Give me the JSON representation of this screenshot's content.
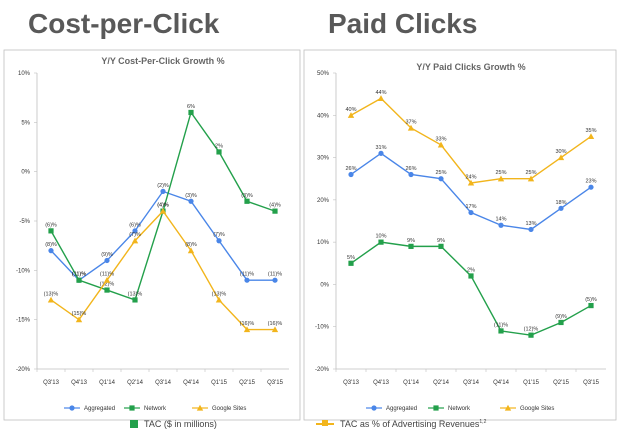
{
  "page": {
    "left_title": "Cost-per-Click",
    "right_title": "Paid Clicks",
    "footer_tac": "TAC ($ in millions)",
    "footer_tac_pct": "TAC as % of Advertising Revenues",
    "footer_tac_pct_sup": "1,2"
  },
  "colors": {
    "aggregated": "#4a86e8",
    "network": "#23a04b",
    "google_sites": "#f2b51c",
    "grid": "#d9d9d9",
    "axis_text": "#333333"
  },
  "chart_data": [
    {
      "type": "line",
      "title": "Y/Y Cost-Per-Click Growth %",
      "categories": [
        "Q3'13",
        "Q4'13",
        "Q1'14",
        "Q2'14",
        "Q3'14",
        "Q4'14",
        "Q1'15",
        "Q2'15",
        "Q3'15"
      ],
      "ylim": [
        -20,
        10
      ],
      "yticks": [
        10,
        5,
        0,
        -5,
        -10,
        -15,
        -20
      ],
      "ytick_labels": [
        "10%",
        "5%",
        "0%",
        "-5%",
        "-10%",
        "-15%",
        "-20%"
      ],
      "grid": false,
      "legend": "bottom",
      "series": [
        {
          "name": "Aggregated",
          "color_key": "aggregated",
          "marker": "circle",
          "values": [
            -8,
            -11,
            -9,
            -6,
            -2,
            -3,
            -7,
            -11,
            -11
          ],
          "labels": [
            "(8)%",
            "(11)%",
            "(9)%",
            "(6)%",
            "(2)%",
            "(3)%",
            "(7)%",
            "(11)%",
            "(11)%"
          ]
        },
        {
          "name": "Network",
          "color_key": "network",
          "marker": "square",
          "values": [
            -6,
            -11,
            -12,
            -13,
            -4,
            6,
            2,
            -3,
            -4
          ],
          "labels": [
            "(6)%",
            "(11)%",
            "(12)%",
            "(13)%",
            "(4)%",
            "6%",
            "2%",
            "(3)%",
            "(4)%"
          ]
        },
        {
          "name": "Google Sites",
          "color_key": "google_sites",
          "marker": "triangle",
          "values": [
            -13,
            -15,
            -11,
            -7,
            -4,
            -8,
            -13,
            -16,
            -16
          ],
          "labels": [
            "(13)%",
            "(15)%",
            "(11)%",
            "(7)%",
            "(4)%",
            "(8)%",
            "(13)%",
            "(16)%",
            "(16)%"
          ]
        }
      ]
    },
    {
      "type": "line",
      "title": "Y/Y Paid Clicks Growth %",
      "categories": [
        "Q3'13",
        "Q4'13",
        "Q1'14",
        "Q2'14",
        "Q3'14",
        "Q4'14",
        "Q1'15",
        "Q2'15",
        "Q3'15"
      ],
      "ylim": [
        -20,
        50
      ],
      "yticks": [
        50,
        40,
        30,
        20,
        10,
        0,
        -10,
        -20
      ],
      "ytick_labels": [
        "50%",
        "40%",
        "30%",
        "20%",
        "10%",
        "0%",
        "-10%",
        "-20%"
      ],
      "grid": false,
      "legend": "bottom",
      "series": [
        {
          "name": "Aggregated",
          "color_key": "aggregated",
          "marker": "circle",
          "values": [
            26,
            31,
            26,
            25,
            17,
            14,
            13,
            18,
            23
          ],
          "labels": [
            "26%",
            "31%",
            "26%",
            "25%",
            "17%",
            "14%",
            "13%",
            "18%",
            "23%"
          ]
        },
        {
          "name": "Network",
          "color_key": "network",
          "marker": "square",
          "values": [
            5,
            10,
            9,
            9,
            2,
            -11,
            -12,
            -9,
            -5
          ],
          "labels": [
            "5%",
            "10%",
            "9%",
            "9%",
            "2%",
            "(11)%",
            "(12)%",
            "(9)%",
            "(5)%"
          ]
        },
        {
          "name": "Google Sites",
          "color_key": "google_sites",
          "marker": "triangle",
          "values": [
            40,
            44,
            37,
            33,
            24,
            25,
            25,
            30,
            35
          ],
          "labels": [
            "40%",
            "44%",
            "37%",
            "33%",
            "24%",
            "25%",
            "25%",
            "30%",
            "35%"
          ]
        }
      ]
    }
  ]
}
